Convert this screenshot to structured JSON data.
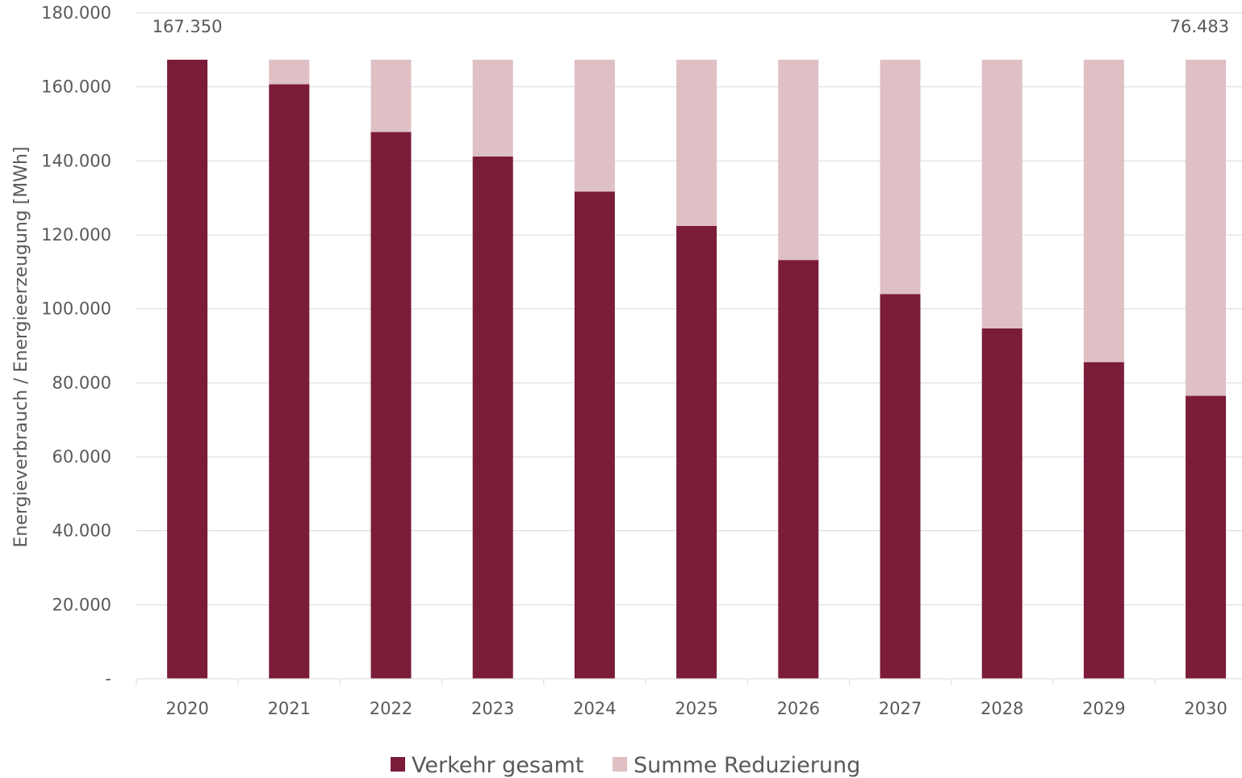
{
  "chart_data": {
    "type": "bar",
    "stacked": true,
    "categories": [
      "2020",
      "2021",
      "2022",
      "2023",
      "2024",
      "2025",
      "2026",
      "2027",
      "2028",
      "2029",
      "2030"
    ],
    "series": [
      {
        "name": "Verkehr gesamt",
        "color": "#7b1c38",
        "values": [
          167350,
          160700,
          147800,
          141200,
          131700,
          122400,
          113200,
          104000,
          94700,
          85600,
          76483
        ]
      },
      {
        "name": "Summe Reduzierung",
        "color": "#dfc0c5",
        "values": [
          0,
          6650,
          19550,
          26150,
          35650,
          44950,
          54150,
          63350,
          72650,
          81750,
          90867
        ]
      }
    ],
    "ylabel": "Energieverbrauch / Energieerzeugung [MWh]",
    "ylim": [
      0,
      180000
    ],
    "yticks": [
      {
        "value": 0,
        "label": "-"
      },
      {
        "value": 20000,
        "label": "20.000"
      },
      {
        "value": 40000,
        "label": "40.000"
      },
      {
        "value": 60000,
        "label": "60.000"
      },
      {
        "value": 80000,
        "label": "80.000"
      },
      {
        "value": 100000,
        "label": "100.000"
      },
      {
        "value": 120000,
        "label": "120.000"
      },
      {
        "value": 140000,
        "label": "140.000"
      },
      {
        "value": 160000,
        "label": "160.000"
      },
      {
        "value": 180000,
        "label": "180.000"
      }
    ],
    "annotations": [
      {
        "category": "2020",
        "value": 167350,
        "text": "167.350"
      },
      {
        "category": "2030",
        "value": 76483,
        "text": "76.483"
      }
    ],
    "grid": true,
    "legend_position": "bottom"
  }
}
